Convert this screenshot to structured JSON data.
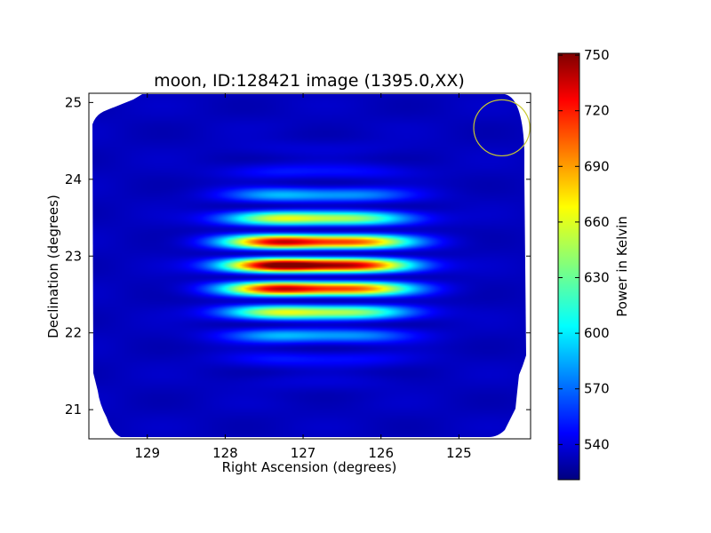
{
  "chart_data": {
    "type": "heatmap",
    "title": "moon, ID:128421 image (1395.0,XX)",
    "xlabel": "Right Ascension (degrees)",
    "ylabel": "Declination (degrees)",
    "xlim": [
      129.75,
      124.08
    ],
    "ylim": [
      20.62,
      25.12
    ],
    "x_reversed": true,
    "x_ticks": [
      {
        "value": 129,
        "label": "129"
      },
      {
        "value": 128,
        "label": "128"
      },
      {
        "value": 127,
        "label": "127"
      },
      {
        "value": 126,
        "label": "126"
      },
      {
        "value": 125,
        "label": "125"
      }
    ],
    "y_ticks": [
      {
        "value": 21,
        "label": "21"
      },
      {
        "value": 22,
        "label": "22"
      },
      {
        "value": 23,
        "label": "23"
      },
      {
        "value": 24,
        "label": "24"
      },
      {
        "value": 25,
        "label": "25"
      }
    ],
    "colormap": "jet",
    "colorbar": {
      "label": "Power in Kelvin",
      "range": [
        521,
        751
      ],
      "ticks": [
        {
          "value": 540,
          "label": "540"
        },
        {
          "value": 570,
          "label": "570"
        },
        {
          "value": 600,
          "label": "600"
        },
        {
          "value": 630,
          "label": "630"
        },
        {
          "value": 660,
          "label": "660"
        },
        {
          "value": 690,
          "label": "690"
        },
        {
          "value": 720,
          "label": "720"
        },
        {
          "value": 750,
          "label": "750"
        }
      ]
    },
    "background_level": 535,
    "fringe_sources": [
      {
        "ra": 127.35,
        "dec": 22.88,
        "peak": 750,
        "fringe_spacing_deg": 0.31,
        "sigma_ra": 0.48,
        "sigma_dec": 0.55
      },
      {
        "ra": 126.28,
        "dec": 22.88,
        "peak": 715,
        "fringe_spacing_deg": 0.31,
        "sigma_ra": 0.5,
        "sigma_dec": 0.55
      }
    ],
    "beam_circle": {
      "ra": 124.45,
      "dec": 24.67,
      "radius_deg": 0.36,
      "color": "#c8c832"
    },
    "footprint_color": "#0c1ed2",
    "grid": false
  }
}
